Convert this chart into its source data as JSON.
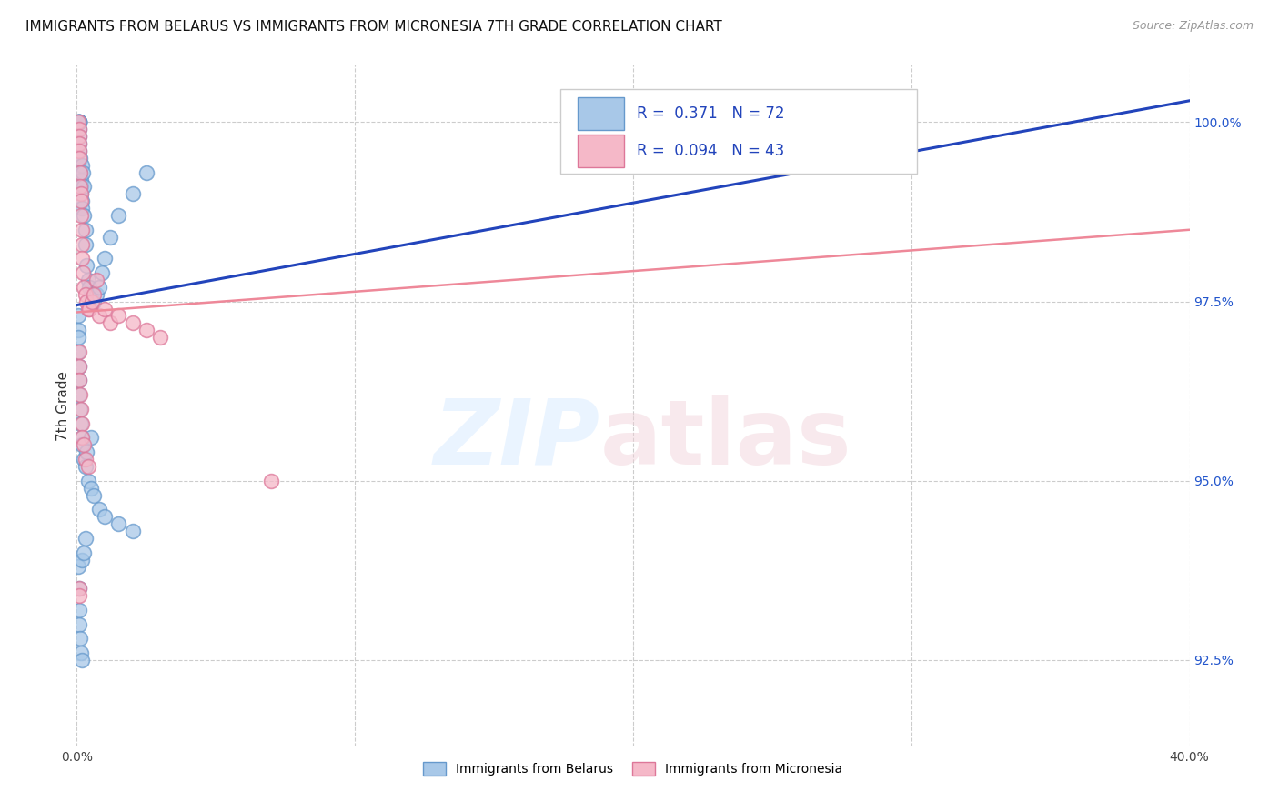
{
  "title": "IMMIGRANTS FROM BELARUS VS IMMIGRANTS FROM MICRONESIA 7TH GRADE CORRELATION CHART",
  "source": "Source: ZipAtlas.com",
  "ylabel": "7th Grade",
  "xmin": 0.0,
  "xmax": 40.0,
  "ymin": 91.3,
  "ymax": 100.8,
  "yticks": [
    92.5,
    95.0,
    97.5,
    100.0
  ],
  "xtick_positions": [
    0.0,
    10.0,
    20.0,
    30.0,
    40.0
  ],
  "xtick_labels": [
    "0.0%",
    "",
    "",
    "",
    "40.0%"
  ],
  "ytick_labels": [
    "92.5%",
    "95.0%",
    "97.5%",
    "100.0%"
  ],
  "belarus_color": "#a8c8e8",
  "micronesia_color": "#f5b8c8",
  "belarus_edge": "#6699cc",
  "micronesia_edge": "#dd7799",
  "belarus_line_color": "#2244bb",
  "micronesia_line_color": "#ee8899",
  "R_belarus": 0.371,
  "N_belarus": 72,
  "R_micronesia": 0.094,
  "N_micronesia": 43,
  "legend_text_color": "#2244bb",
  "belarus_line_x0": 0.0,
  "belarus_line_y0": 97.45,
  "belarus_line_x1": 40.0,
  "belarus_line_y1": 100.3,
  "micronesia_line_x0": 0.0,
  "micronesia_line_y0": 97.35,
  "micronesia_line_x1": 40.0,
  "micronesia_line_y1": 98.5,
  "belarus_x": [
    0.05,
    0.05,
    0.05,
    0.07,
    0.07,
    0.07,
    0.07,
    0.07,
    0.08,
    0.1,
    0.1,
    0.1,
    0.1,
    0.12,
    0.12,
    0.15,
    0.15,
    0.15,
    0.17,
    0.2,
    0.2,
    0.22,
    0.25,
    0.25,
    0.3,
    0.3,
    0.35,
    0.4,
    0.45,
    0.5,
    0.55,
    0.6,
    0.7,
    0.8,
    0.9,
    1.0,
    1.2,
    1.5,
    2.0,
    2.5,
    0.05,
    0.05,
    0.06,
    0.06,
    0.08,
    0.1,
    0.1,
    0.12,
    0.15,
    0.18,
    0.2,
    0.25,
    0.3,
    0.4,
    0.5,
    0.6,
    0.8,
    1.0,
    1.5,
    2.0,
    0.05,
    0.07,
    0.08,
    0.1,
    0.12,
    0.15,
    0.18,
    0.2,
    0.25,
    0.3,
    0.35,
    0.5
  ],
  "belarus_y": [
    100.0,
    100.0,
    100.0,
    100.0,
    100.0,
    100.0,
    100.0,
    100.0,
    99.9,
    100.0,
    99.8,
    99.7,
    99.6,
    99.5,
    99.3,
    99.2,
    99.1,
    99.0,
    98.9,
    98.8,
    99.4,
    99.3,
    99.1,
    98.7,
    98.5,
    98.3,
    98.0,
    97.8,
    97.7,
    97.6,
    97.5,
    97.5,
    97.6,
    97.7,
    97.9,
    98.1,
    98.4,
    98.7,
    99.0,
    99.3,
    97.3,
    97.1,
    97.0,
    96.8,
    96.6,
    96.4,
    96.2,
    96.0,
    95.8,
    95.6,
    95.5,
    95.3,
    95.2,
    95.0,
    94.9,
    94.8,
    94.6,
    94.5,
    94.4,
    94.3,
    93.8,
    93.5,
    93.2,
    93.0,
    92.8,
    92.6,
    92.5,
    93.9,
    94.0,
    94.2,
    95.4,
    95.6
  ],
  "micronesia_x": [
    0.05,
    0.07,
    0.08,
    0.08,
    0.1,
    0.1,
    0.12,
    0.12,
    0.15,
    0.15,
    0.15,
    0.17,
    0.2,
    0.2,
    0.22,
    0.25,
    0.3,
    0.35,
    0.4,
    0.45,
    0.55,
    0.6,
    0.7,
    0.8,
    1.0,
    1.2,
    1.5,
    2.0,
    2.5,
    3.0,
    0.07,
    0.08,
    0.1,
    0.12,
    0.15,
    0.18,
    0.2,
    0.25,
    0.3,
    0.4,
    7.0,
    0.07,
    0.1
  ],
  "micronesia_y": [
    100.0,
    99.9,
    99.8,
    99.7,
    99.6,
    99.5,
    99.3,
    99.1,
    99.0,
    98.9,
    98.7,
    98.5,
    98.3,
    98.1,
    97.9,
    97.7,
    97.6,
    97.5,
    97.4,
    97.4,
    97.5,
    97.6,
    97.8,
    97.3,
    97.4,
    97.2,
    97.3,
    97.2,
    97.1,
    97.0,
    96.8,
    96.6,
    96.4,
    96.2,
    96.0,
    95.8,
    95.6,
    95.5,
    95.3,
    95.2,
    95.0,
    93.5,
    93.4
  ]
}
